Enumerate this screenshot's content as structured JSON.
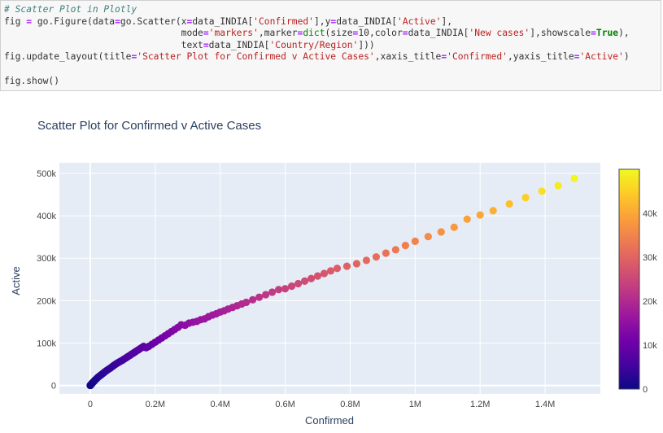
{
  "code": {
    "lines": [
      [
        {
          "t": "# Scatter Plot in Plotly",
          "c": "c-comment"
        }
      ],
      [
        {
          "t": "fig "
        },
        {
          "t": "=",
          "c": "c-op"
        },
        {
          "t": " go"
        },
        {
          "t": "."
        },
        {
          "t": "Figure(data"
        },
        {
          "t": "=",
          "c": "c-op"
        },
        {
          "t": "go"
        },
        {
          "t": "."
        },
        {
          "t": "Scatter(x"
        },
        {
          "t": "=",
          "c": "c-op"
        },
        {
          "t": "data_INDIA["
        },
        {
          "t": "'Confirmed'",
          "c": "c-str"
        },
        {
          "t": "],y"
        },
        {
          "t": "=",
          "c": "c-op"
        },
        {
          "t": "data_INDIA["
        },
        {
          "t": "'Active'",
          "c": "c-str"
        },
        {
          "t": "],"
        }
      ],
      [
        {
          "t": "                                mode"
        },
        {
          "t": "=",
          "c": "c-op"
        },
        {
          "t": "'markers'",
          "c": "c-str"
        },
        {
          "t": ",marker"
        },
        {
          "t": "=",
          "c": "c-op"
        },
        {
          "t": "dict",
          "c": "c-fn"
        },
        {
          "t": "(size"
        },
        {
          "t": "=",
          "c": "c-op"
        },
        {
          "t": "10"
        },
        {
          "t": ",color"
        },
        {
          "t": "=",
          "c": "c-op"
        },
        {
          "t": "data_INDIA["
        },
        {
          "t": "'New cases'",
          "c": "c-str"
        },
        {
          "t": "],showscale"
        },
        {
          "t": "=",
          "c": "c-op"
        },
        {
          "t": "True",
          "c": "c-kw"
        },
        {
          "t": "),"
        }
      ],
      [
        {
          "t": "                                text"
        },
        {
          "t": "=",
          "c": "c-op"
        },
        {
          "t": "data_INDIA["
        },
        {
          "t": "'Country/Region'",
          "c": "c-str"
        },
        {
          "t": "]))"
        }
      ],
      [
        {
          "t": "fig"
        },
        {
          "t": "."
        },
        {
          "t": "update_layout(title"
        },
        {
          "t": "=",
          "c": "c-op"
        },
        {
          "t": "'Scatter Plot for Confirmed v Active Cases'",
          "c": "c-str"
        },
        {
          "t": ",xaxis_title"
        },
        {
          "t": "=",
          "c": "c-op"
        },
        {
          "t": "'Confirmed'",
          "c": "c-str"
        },
        {
          "t": ",yaxis_title"
        },
        {
          "t": "=",
          "c": "c-op"
        },
        {
          "t": "'Active'",
          "c": "c-str"
        },
        {
          "t": ")"
        }
      ],
      [
        {
          "t": ""
        }
      ],
      [
        {
          "t": "fig"
        },
        {
          "t": "."
        },
        {
          "t": "show()"
        }
      ]
    ]
  },
  "colors": {
    "plot_bg": "#e5ecf6",
    "grid": "#ffffff",
    "axis_text": "#444444",
    "title_text": "#2a3f5f"
  },
  "chart_data": {
    "type": "scatter",
    "title": "Scatter Plot for Confirmed v Active Cases",
    "xlabel": "Confirmed",
    "ylabel": "Active",
    "xlim": [
      -95000,
      1570000
    ],
    "ylim": [
      -20000,
      525000
    ],
    "x_ticks": [
      0,
      200000,
      400000,
      600000,
      800000,
      1000000,
      1200000,
      1400000
    ],
    "x_tick_labels": [
      "0",
      "0.2M",
      "0.4M",
      "0.6M",
      "0.8M",
      "1M",
      "1.2M",
      "1.4M"
    ],
    "y_ticks": [
      0,
      100000,
      200000,
      300000,
      400000,
      500000
    ],
    "y_tick_labels": [
      "0",
      "100k",
      "200k",
      "300k",
      "400k",
      "500k"
    ],
    "grid": true,
    "colorbar": {
      "range": [
        0,
        50000
      ],
      "ticks": [
        0,
        10000,
        20000,
        30000,
        40000
      ],
      "tick_labels": [
        "0",
        "10k",
        "20k",
        "30k",
        "40k"
      ],
      "colorscale": [
        "#0d0887",
        "#46039f",
        "#7201a8",
        "#9c179e",
        "#bd3786",
        "#d8576b",
        "#ed7953",
        "#fb9f3a",
        "#fdca26",
        "#f0f921"
      ]
    },
    "points": [
      {
        "x": 0,
        "y": 0,
        "c": 0
      },
      {
        "x": 500,
        "y": 400,
        "c": 50
      },
      {
        "x": 1000,
        "y": 900,
        "c": 80
      },
      {
        "x": 2000,
        "y": 1700,
        "c": 150
      },
      {
        "x": 3000,
        "y": 2600,
        "c": 250
      },
      {
        "x": 4500,
        "y": 4000,
        "c": 400
      },
      {
        "x": 6000,
        "y": 5400,
        "c": 500
      },
      {
        "x": 8000,
        "y": 7000,
        "c": 700
      },
      {
        "x": 10000,
        "y": 8500,
        "c": 900
      },
      {
        "x": 13000,
        "y": 11000,
        "c": 1100
      },
      {
        "x": 16000,
        "y": 13500,
        "c": 1300
      },
      {
        "x": 20000,
        "y": 16500,
        "c": 1600
      },
      {
        "x": 25000,
        "y": 20000,
        "c": 1900
      },
      {
        "x": 30000,
        "y": 23000,
        "c": 2200
      },
      {
        "x": 35000,
        "y": 26000,
        "c": 2500
      },
      {
        "x": 40000,
        "y": 29000,
        "c": 2800
      },
      {
        "x": 45000,
        "y": 32000,
        "c": 3000
      },
      {
        "x": 50000,
        "y": 35000,
        "c": 3200
      },
      {
        "x": 56000,
        "y": 38000,
        "c": 3400
      },
      {
        "x": 62000,
        "y": 41000,
        "c": 3600
      },
      {
        "x": 68000,
        "y": 44500,
        "c": 3800
      },
      {
        "x": 74000,
        "y": 48000,
        "c": 4000
      },
      {
        "x": 80000,
        "y": 51000,
        "c": 4300
      },
      {
        "x": 86000,
        "y": 54000,
        "c": 4600
      },
      {
        "x": 92000,
        "y": 56500,
        "c": 4900
      },
      {
        "x": 98000,
        "y": 59000,
        "c": 5200
      },
      {
        "x": 104000,
        "y": 62000,
        "c": 5500
      },
      {
        "x": 110000,
        "y": 65000,
        "c": 5800
      },
      {
        "x": 116000,
        "y": 68000,
        "c": 6100
      },
      {
        "x": 122000,
        "y": 71000,
        "c": 6400
      },
      {
        "x": 128000,
        "y": 74000,
        "c": 6600
      },
      {
        "x": 134000,
        "y": 77000,
        "c": 6900
      },
      {
        "x": 140000,
        "y": 80000,
        "c": 7200
      },
      {
        "x": 146000,
        "y": 83000,
        "c": 7500
      },
      {
        "x": 152000,
        "y": 86000,
        "c": 7800
      },
      {
        "x": 158000,
        "y": 89000,
        "c": 8100
      },
      {
        "x": 164000,
        "y": 92000,
        "c": 8400
      },
      {
        "x": 172000,
        "y": 89000,
        "c": 8600
      },
      {
        "x": 180000,
        "y": 92000,
        "c": 9000
      },
      {
        "x": 190000,
        "y": 97000,
        "c": 9500
      },
      {
        "x": 200000,
        "y": 102000,
        "c": 10000
      },
      {
        "x": 210000,
        "y": 107000,
        "c": 10500
      },
      {
        "x": 220000,
        "y": 112000,
        "c": 11000
      },
      {
        "x": 230000,
        "y": 117000,
        "c": 11500
      },
      {
        "x": 240000,
        "y": 122000,
        "c": 12000
      },
      {
        "x": 250000,
        "y": 127000,
        "c": 12500
      },
      {
        "x": 260000,
        "y": 132000,
        "c": 13000
      },
      {
        "x": 270000,
        "y": 137000,
        "c": 13500
      },
      {
        "x": 280000,
        "y": 143000,
        "c": 14000
      },
      {
        "x": 292000,
        "y": 142000,
        "c": 14500
      },
      {
        "x": 304000,
        "y": 147000,
        "c": 15000
      },
      {
        "x": 316000,
        "y": 149000,
        "c": 15300
      },
      {
        "x": 328000,
        "y": 151000,
        "c": 15600
      },
      {
        "x": 340000,
        "y": 155000,
        "c": 16000
      },
      {
        "x": 352000,
        "y": 157000,
        "c": 16300
      },
      {
        "x": 364000,
        "y": 162000,
        "c": 16700
      },
      {
        "x": 376000,
        "y": 166000,
        "c": 17000
      },
      {
        "x": 388000,
        "y": 169000,
        "c": 17400
      },
      {
        "x": 400000,
        "y": 173000,
        "c": 17800
      },
      {
        "x": 412000,
        "y": 176000,
        "c": 18200
      },
      {
        "x": 424000,
        "y": 180000,
        "c": 18600
      },
      {
        "x": 438000,
        "y": 184000,
        "c": 19000
      },
      {
        "x": 452000,
        "y": 188000,
        "c": 19500
      },
      {
        "x": 466000,
        "y": 192000,
        "c": 20000
      },
      {
        "x": 480000,
        "y": 196000,
        "c": 20500
      },
      {
        "x": 500000,
        "y": 202000,
        "c": 21000
      },
      {
        "x": 520000,
        "y": 208000,
        "c": 21600
      },
      {
        "x": 540000,
        "y": 214000,
        "c": 22200
      },
      {
        "x": 560000,
        "y": 220000,
        "c": 22800
      },
      {
        "x": 580000,
        "y": 226000,
        "c": 23400
      },
      {
        "x": 600000,
        "y": 228000,
        "c": 24000
      },
      {
        "x": 620000,
        "y": 234000,
        "c": 24600
      },
      {
        "x": 640000,
        "y": 240000,
        "c": 25200
      },
      {
        "x": 660000,
        "y": 246000,
        "c": 25800
      },
      {
        "x": 680000,
        "y": 252000,
        "c": 26400
      },
      {
        "x": 700000,
        "y": 258000,
        "c": 27000
      },
      {
        "x": 720000,
        "y": 264000,
        "c": 27600
      },
      {
        "x": 740000,
        "y": 270000,
        "c": 28200
      },
      {
        "x": 760000,
        "y": 276000,
        "c": 28800
      },
      {
        "x": 790000,
        "y": 281000,
        "c": 29400
      },
      {
        "x": 820000,
        "y": 287000,
        "c": 30000
      },
      {
        "x": 850000,
        "y": 295000,
        "c": 30800
      },
      {
        "x": 880000,
        "y": 303000,
        "c": 31600
      },
      {
        "x": 910000,
        "y": 312000,
        "c": 32400
      },
      {
        "x": 940000,
        "y": 320000,
        "c": 33200
      },
      {
        "x": 970000,
        "y": 330000,
        "c": 34000
      },
      {
        "x": 1000000,
        "y": 340000,
        "c": 35000
      },
      {
        "x": 1040000,
        "y": 351000,
        "c": 36000
      },
      {
        "x": 1080000,
        "y": 362000,
        "c": 37000
      },
      {
        "x": 1120000,
        "y": 373000,
        "c": 38000
      },
      {
        "x": 1160000,
        "y": 392000,
        "c": 39000
      },
      {
        "x": 1200000,
        "y": 402000,
        "c": 40000
      },
      {
        "x": 1240000,
        "y": 412000,
        "c": 41000
      },
      {
        "x": 1290000,
        "y": 428000,
        "c": 43000
      },
      {
        "x": 1340000,
        "y": 443000,
        "c": 45000
      },
      {
        "x": 1390000,
        "y": 458000,
        "c": 47000
      },
      {
        "x": 1440000,
        "y": 471000,
        "c": 48500
      },
      {
        "x": 1490000,
        "y": 488000,
        "c": 49500
      }
    ]
  }
}
